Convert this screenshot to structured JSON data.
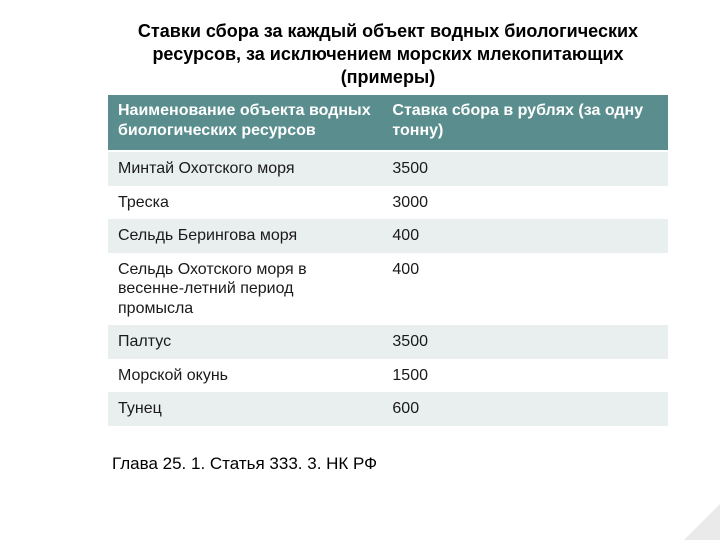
{
  "title_lines": [
    "Ставки сбора за каждый объект водных биологических",
    "ресурсов, за исключением морских млекопитающих",
    "(примеры)"
  ],
  "table": {
    "header_bg": "#5a8e8e",
    "header_fg": "#ffffff",
    "row_alt_bg": "#e9eeee",
    "row_plain_bg": "#ffffff",
    "headers": {
      "col1": "Наименование объекта водных биологических ресурсов",
      "col2": "Ставка сбора в рублях (за одну тонну)"
    },
    "rows": [
      {
        "name": "Минтай Охотского моря",
        "rate": "3500"
      },
      {
        "name": "Треска",
        "rate": "3000"
      },
      {
        "name": "Сельдь Берингова моря",
        "rate": "400"
      },
      {
        "name": "Сельдь Охотского моря в весенне-летний период промысла",
        "rate": "400"
      },
      {
        "name": "Палтус",
        "rate": "3500"
      },
      {
        "name": "Морской окунь",
        "rate": "1500"
      },
      {
        "name": "Тунец",
        "rate": "600"
      }
    ]
  },
  "footer": "Глава 25. 1.  Статья 333. 3. НК РФ"
}
